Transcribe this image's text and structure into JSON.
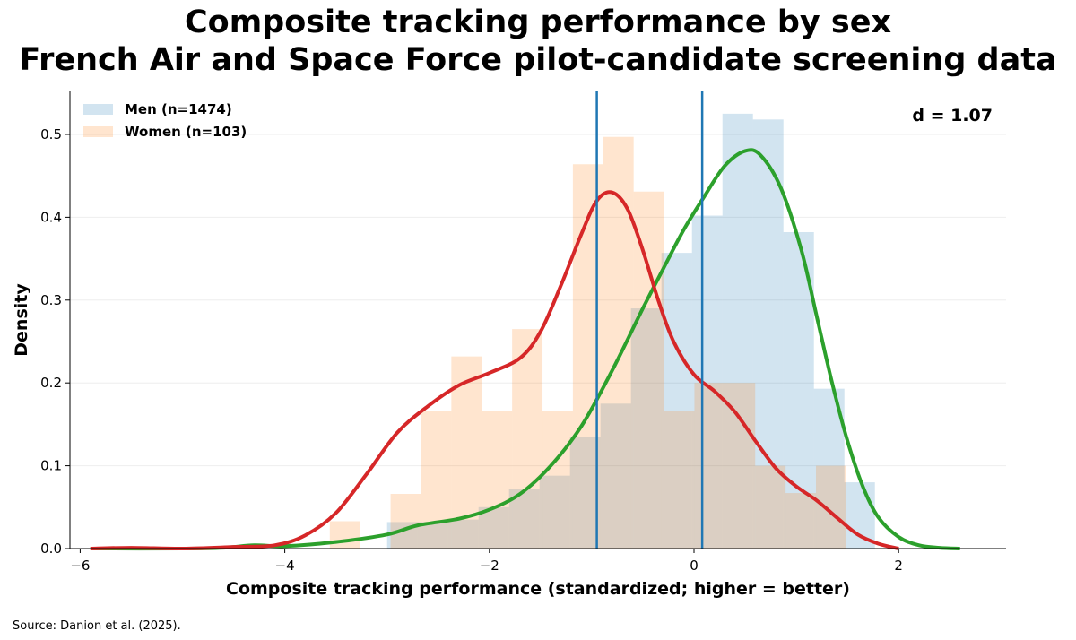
{
  "chart_data": {
    "type": "histogram+kde",
    "title": [
      "Composite tracking performance by sex",
      "French Air and Space Force pilot-candidate screening data"
    ],
    "xlabel": "Composite tracking performance (standardized; higher = better)",
    "ylabel": "Density",
    "xlim": [
      -6.1,
      3.05
    ],
    "ylim": [
      0,
      0.553
    ],
    "x_ticks": [
      -6,
      -4,
      -2,
      0,
      2
    ],
    "x_tick_labels": [
      "−6",
      "−4",
      "−2",
      "0",
      "2"
    ],
    "y_ticks": [
      0.0,
      0.1,
      0.2,
      0.3,
      0.4,
      0.5
    ],
    "y_tick_labels": [
      "0.0",
      "0.1",
      "0.2",
      "0.3",
      "0.4",
      "0.5"
    ],
    "grid": "horizontal",
    "legend_position": "top-left",
    "annotation": "d = 1.07",
    "source": "Source: Danion et al. (2025).",
    "series": [
      {
        "name": "Men (n=1474)",
        "color": "#1f77b4",
        "kde_color": "#2ca02c",
        "mean": 0.08,
        "bin_width": 0.298,
        "bins": [
          {
            "x0": -3.0,
            "value": 0.032
          },
          {
            "x0": -2.702,
            "value": 0.032
          },
          {
            "x0": -2.404,
            "value": 0.035
          },
          {
            "x0": -2.106,
            "value": 0.05
          },
          {
            "x0": -1.808,
            "value": 0.072
          },
          {
            "x0": -1.51,
            "value": 0.088
          },
          {
            "x0": -1.212,
            "value": 0.135
          },
          {
            "x0": -0.914,
            "value": 0.175
          },
          {
            "x0": -0.616,
            "value": 0.29
          },
          {
            "x0": -0.318,
            "value": 0.357
          },
          {
            "x0": -0.02,
            "value": 0.402
          },
          {
            "x0": 0.278,
            "value": 0.525
          },
          {
            "x0": 0.576,
            "value": 0.518
          },
          {
            "x0": 0.874,
            "value": 0.382
          },
          {
            "x0": 1.172,
            "value": 0.193
          },
          {
            "x0": 1.47,
            "value": 0.08
          }
        ],
        "kde": [
          [
            -5.9,
            0.0
          ],
          [
            -5.0,
            0.0
          ],
          [
            -4.6,
            0.001
          ],
          [
            -4.3,
            0.004
          ],
          [
            -4.0,
            0.003
          ],
          [
            -3.5,
            0.008
          ],
          [
            -3.0,
            0.017
          ],
          [
            -2.7,
            0.028
          ],
          [
            -2.3,
            0.036
          ],
          [
            -2.0,
            0.047
          ],
          [
            -1.7,
            0.066
          ],
          [
            -1.4,
            0.1
          ],
          [
            -1.1,
            0.148
          ],
          [
            -0.8,
            0.215
          ],
          [
            -0.5,
            0.29
          ],
          [
            -0.3,
            0.338
          ],
          [
            -0.1,
            0.385
          ],
          [
            0.1,
            0.425
          ],
          [
            0.3,
            0.462
          ],
          [
            0.5,
            0.48
          ],
          [
            0.65,
            0.475
          ],
          [
            0.85,
            0.435
          ],
          [
            1.05,
            0.36
          ],
          [
            1.2,
            0.28
          ],
          [
            1.35,
            0.2
          ],
          [
            1.5,
            0.13
          ],
          [
            1.65,
            0.075
          ],
          [
            1.8,
            0.038
          ],
          [
            2.0,
            0.014
          ],
          [
            2.2,
            0.004
          ],
          [
            2.4,
            0.001
          ],
          [
            2.6,
            0.0
          ]
        ]
      },
      {
        "name": "Women (n=103)",
        "color": "#ff7f0e",
        "kde_color": "#d62728",
        "mean": -0.95,
        "bin_width": 0.297,
        "bins": [
          {
            "x0": -3.56,
            "value": 0.033
          },
          {
            "x0": -3.263,
            "value": 0.0
          },
          {
            "x0": -2.966,
            "value": 0.066
          },
          {
            "x0": -2.669,
            "value": 0.166
          },
          {
            "x0": -2.372,
            "value": 0.232
          },
          {
            "x0": -2.075,
            "value": 0.166
          },
          {
            "x0": -1.778,
            "value": 0.265
          },
          {
            "x0": -1.481,
            "value": 0.166
          },
          {
            "x0": -1.184,
            "value": 0.464
          },
          {
            "x0": -0.887,
            "value": 0.497
          },
          {
            "x0": -0.59,
            "value": 0.431
          },
          {
            "x0": -0.293,
            "value": 0.166
          },
          {
            "x0": 0.004,
            "value": 0.2
          },
          {
            "x0": 0.301,
            "value": 0.2
          },
          {
            "x0": 0.598,
            "value": 0.1
          },
          {
            "x0": 0.895,
            "value": 0.067
          },
          {
            "x0": 1.192,
            "value": 0.1
          }
        ],
        "kde": [
          [
            -5.9,
            0.0
          ],
          [
            -5.5,
            0.001
          ],
          [
            -5.0,
            0.0
          ],
          [
            -4.5,
            0.002
          ],
          [
            -4.1,
            0.004
          ],
          [
            -3.8,
            0.016
          ],
          [
            -3.5,
            0.043
          ],
          [
            -3.2,
            0.09
          ],
          [
            -2.9,
            0.14
          ],
          [
            -2.6,
            0.172
          ],
          [
            -2.3,
            0.197
          ],
          [
            -2.0,
            0.212
          ],
          [
            -1.7,
            0.23
          ],
          [
            -1.5,
            0.262
          ],
          [
            -1.3,
            0.318
          ],
          [
            -1.1,
            0.38
          ],
          [
            -0.95,
            0.42
          ],
          [
            -0.8,
            0.43
          ],
          [
            -0.65,
            0.41
          ],
          [
            -0.5,
            0.36
          ],
          [
            -0.35,
            0.3
          ],
          [
            -0.2,
            0.25
          ],
          [
            0.0,
            0.21
          ],
          [
            0.2,
            0.19
          ],
          [
            0.4,
            0.165
          ],
          [
            0.6,
            0.13
          ],
          [
            0.8,
            0.097
          ],
          [
            1.0,
            0.075
          ],
          [
            1.2,
            0.058
          ],
          [
            1.4,
            0.037
          ],
          [
            1.6,
            0.017
          ],
          [
            1.8,
            0.006
          ],
          [
            2.0,
            0.0
          ]
        ]
      }
    ],
    "mean_line_color": "#1f77b4"
  }
}
